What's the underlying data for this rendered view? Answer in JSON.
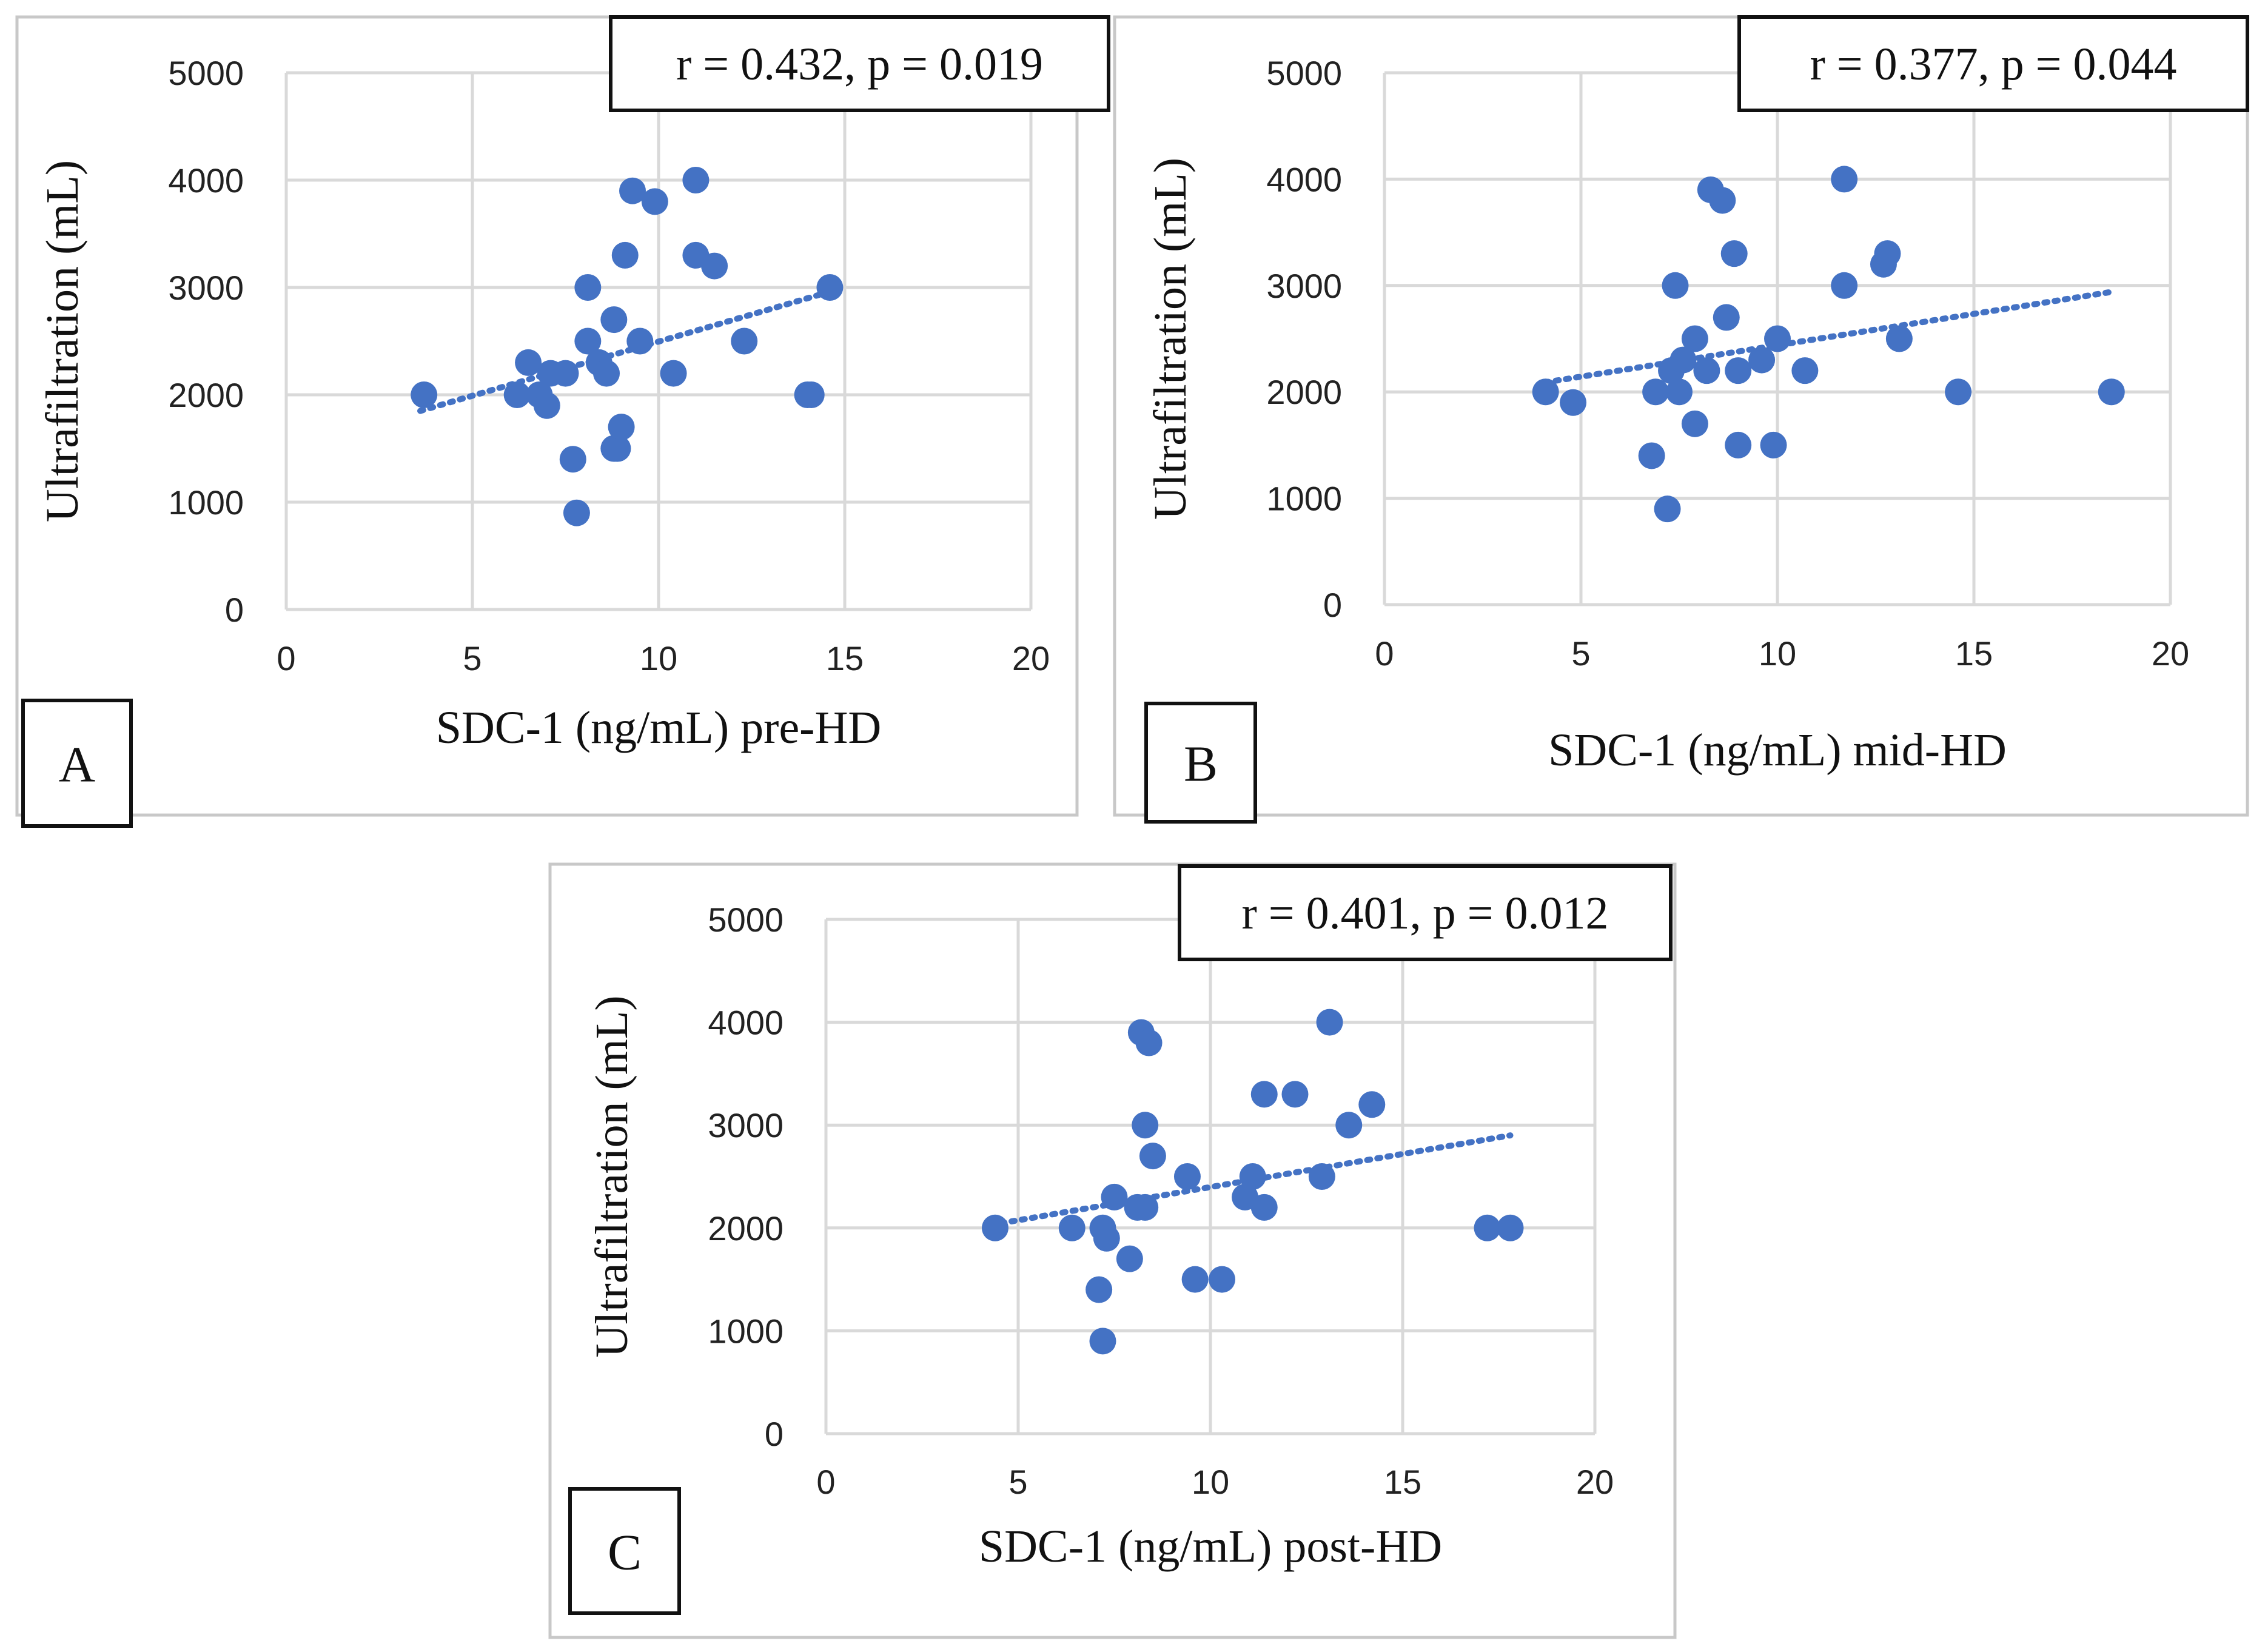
{
  "chart_data": [
    {
      "panel": "A",
      "type": "scatter",
      "stats_label": "r = 0.432, p = 0.019",
      "xlabel": "SDC-1 (ng/mL) pre-HD",
      "ylabel": "Ultrafiltration (mL)",
      "xlim": [
        0,
        20
      ],
      "ylim": [
        0,
        5000
      ],
      "xticks": [
        "0",
        "5",
        "10",
        "15",
        "20"
      ],
      "yticks": [
        "0",
        "1000",
        "2000",
        "3000",
        "4000",
        "5000"
      ],
      "grid": true,
      "marker_color": "#4472c4",
      "trendline": {
        "x": [
          3.6,
          14.6
        ],
        "y": [
          1850,
          2960
        ]
      },
      "points": [
        [
          3.7,
          2000
        ],
        [
          6.2,
          2000
        ],
        [
          6.5,
          2300
        ],
        [
          6.8,
          2000
        ],
        [
          7.0,
          1900
        ],
        [
          7.1,
          2200
        ],
        [
          7.5,
          2200
        ],
        [
          7.7,
          1400
        ],
        [
          7.8,
          900
        ],
        [
          8.1,
          3000
        ],
        [
          8.1,
          2500
        ],
        [
          8.4,
          2300
        ],
        [
          8.6,
          2200
        ],
        [
          8.8,
          2700
        ],
        [
          8.8,
          1500
        ],
        [
          8.9,
          1500
        ],
        [
          9.0,
          1700
        ],
        [
          9.1,
          3300
        ],
        [
          9.3,
          3900
        ],
        [
          9.5,
          2500
        ],
        [
          9.9,
          3800
        ],
        [
          10.4,
          2200
        ],
        [
          11.0,
          4000
        ],
        [
          11.0,
          3300
        ],
        [
          11.5,
          3200
        ],
        [
          12.3,
          2500
        ],
        [
          14.0,
          2000
        ],
        [
          14.1,
          2000
        ],
        [
          14.6,
          3000
        ]
      ]
    },
    {
      "panel": "B",
      "type": "scatter",
      "stats_label": "r = 0.377, p = 0.044",
      "xlabel": "SDC-1 (ng/mL) mid-HD",
      "ylabel": "Ultrafiltration (mL)",
      "xlim": [
        0,
        20
      ],
      "ylim": [
        0,
        5000
      ],
      "xticks": [
        "0",
        "5",
        "10",
        "15",
        "20"
      ],
      "yticks": [
        "0",
        "1000",
        "2000",
        "3000",
        "4000",
        "5000"
      ],
      "grid": true,
      "marker_color": "#4472c4",
      "trendline": {
        "x": [
          4.1,
          18.5
        ],
        "y": [
          2090,
          2940
        ]
      },
      "points": [
        [
          4.1,
          2000
        ],
        [
          4.8,
          1900
        ],
        [
          6.8,
          1400
        ],
        [
          6.9,
          2000
        ],
        [
          7.2,
          900
        ],
        [
          7.3,
          2200
        ],
        [
          7.4,
          3000
        ],
        [
          7.5,
          2000
        ],
        [
          7.6,
          2300
        ],
        [
          7.9,
          2500
        ],
        [
          7.9,
          1700
        ],
        [
          8.2,
          2200
        ],
        [
          8.3,
          3900
        ],
        [
          8.6,
          3800
        ],
        [
          8.7,
          2700
        ],
        [
          8.9,
          3300
        ],
        [
          9.0,
          2200
        ],
        [
          9.0,
          1500
        ],
        [
          9.6,
          2300
        ],
        [
          9.9,
          1500
        ],
        [
          10.0,
          2500
        ],
        [
          10.7,
          2200
        ],
        [
          11.7,
          4000
        ],
        [
          11.7,
          3000
        ],
        [
          12.7,
          3200
        ],
        [
          12.8,
          3300
        ],
        [
          13.1,
          2500
        ],
        [
          14.6,
          2000
        ],
        [
          18.5,
          2000
        ]
      ]
    },
    {
      "panel": "C",
      "type": "scatter",
      "stats_label": "r = 0.401, p = 0.012",
      "xlabel": "SDC-1 (ng/mL) post-HD",
      "ylabel": "Ultrafiltration (mL)",
      "xlim": [
        0,
        20
      ],
      "ylim": [
        0,
        5000
      ],
      "xticks": [
        "0",
        "5",
        "10",
        "15",
        "20"
      ],
      "yticks": [
        "0",
        "1000",
        "2000",
        "3000",
        "4000",
        "5000"
      ],
      "grid": true,
      "marker_color": "#4472c4",
      "trendline": {
        "x": [
          4.3,
          17.8
        ],
        "y": [
          2030,
          2900
        ]
      },
      "points": [
        [
          4.4,
          2000
        ],
        [
          6.4,
          2000
        ],
        [
          7.1,
          1400
        ],
        [
          7.2,
          2000
        ],
        [
          7.2,
          900
        ],
        [
          7.3,
          1900
        ],
        [
          7.5,
          2300
        ],
        [
          7.9,
          1700
        ],
        [
          8.1,
          2200
        ],
        [
          8.2,
          3900
        ],
        [
          8.3,
          3000
        ],
        [
          8.3,
          2200
        ],
        [
          8.4,
          3800
        ],
        [
          8.5,
          2700
        ],
        [
          9.4,
          2500
        ],
        [
          9.6,
          1500
        ],
        [
          10.3,
          1500
        ],
        [
          10.9,
          2300
        ],
        [
          11.1,
          2500
        ],
        [
          11.4,
          2200
        ],
        [
          11.4,
          3300
        ],
        [
          12.2,
          3300
        ],
        [
          12.9,
          2500
        ],
        [
          13.1,
          4000
        ],
        [
          13.6,
          3000
        ],
        [
          14.2,
          3200
        ],
        [
          17.2,
          2000
        ],
        [
          17.8,
          2000
        ]
      ]
    }
  ]
}
